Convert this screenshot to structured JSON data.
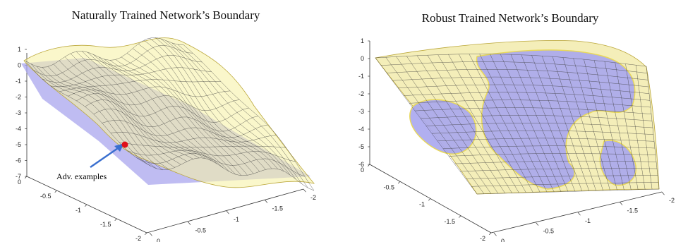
{
  "panels": [
    {
      "title": "Naturally Trained Network’s Boundary",
      "z_ticks": [
        "1",
        "0",
        "-1",
        "-2",
        "-3",
        "-4",
        "-5",
        "-6",
        "-7"
      ],
      "x_ticks": [
        "0",
        "-0.5",
        "-1",
        "-1.5",
        "-2"
      ],
      "y_ticks": [
        "0",
        "-0.5",
        "-1",
        "-1.5",
        "-2"
      ],
      "annotation": "Adv. examples"
    },
    {
      "title": "Robust Trained Network’s Boundary",
      "z_ticks": [
        "1",
        "0",
        "-1",
        "-2",
        "-3",
        "-4",
        "-5",
        "-6"
      ],
      "x_ticks": [
        "0",
        "-0.5",
        "-1",
        "-1.5",
        "-2"
      ],
      "y_ticks": [
        "0",
        "-0.5",
        "-1",
        "-1.5",
        "-2"
      ]
    }
  ],
  "colors": {
    "surface_yellow": "#f7f1a8",
    "surface_blue": "#a9a6ee",
    "mesh": "#3a3a3a",
    "marker": "#e0101a",
    "arrow": "#3a6fcf"
  }
}
